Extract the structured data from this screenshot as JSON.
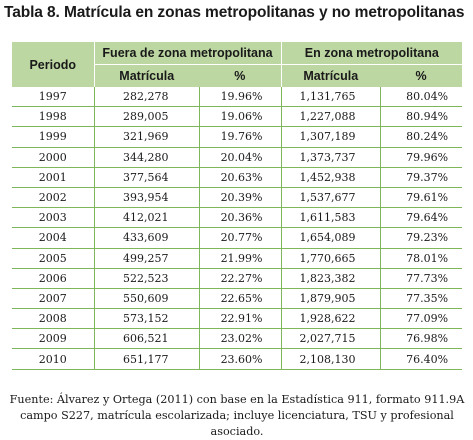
{
  "title": "Tabla 8. Matrícula en zonas metropolitanas y no metropolitanas",
  "table": {
    "period_header": "Periodo",
    "group_headers": [
      "Fuera de zona metropolitana",
      "En zona metropolitana"
    ],
    "sub_headers": [
      "Matrícula",
      "%",
      "Matrícula",
      "%"
    ],
    "rows": [
      [
        "1997",
        "282,278",
        "19.96%",
        "1,131,765",
        "80.04%"
      ],
      [
        "1998",
        "289,005",
        "19.06%",
        "1,227,088",
        "80.94%"
      ],
      [
        "1999",
        "321,969",
        "19.76%",
        "1,307,189",
        "80.24%"
      ],
      [
        "2000",
        "344,280",
        "20.04%",
        "1,373,737",
        "79.96%"
      ],
      [
        "2001",
        "377,564",
        "20.63%",
        "1,452,938",
        "79.37%"
      ],
      [
        "2002",
        "393,954",
        "20.39%",
        "1,537,677",
        "79.61%"
      ],
      [
        "2003",
        "412,021",
        "20.36%",
        "1,611,583",
        "79.64%"
      ],
      [
        "2004",
        "433,609",
        "20.77%",
        "1,654,089",
        "79.23%"
      ],
      [
        "2005",
        "499,257",
        "21.99%",
        "1,770,665",
        "78.01%"
      ],
      [
        "2006",
        "522,523",
        "22.27%",
        "1,823,382",
        "77.73%"
      ],
      [
        "2007",
        "550,609",
        "22.65%",
        "1,879,905",
        "77.35%"
      ],
      [
        "2008",
        "573,152",
        "22.91%",
        "1,928,622",
        "77.09%"
      ],
      [
        "2009",
        "606,521",
        "23.02%",
        "2,027,715",
        "76.98%"
      ],
      [
        "2010",
        "651,177",
        "23.60%",
        "2,108,130",
        "76.40%"
      ]
    ]
  },
  "source_note": "Fuente: Álvarez y Ortega (2011) con base en la Estadística 911, formato 911.9A campo S227, matrícula escolarizada; incluye licenciatura, TSU y profesional asociado.",
  "colors": {
    "header_bg": "#bcd7a2",
    "rule": "#7db65b"
  }
}
